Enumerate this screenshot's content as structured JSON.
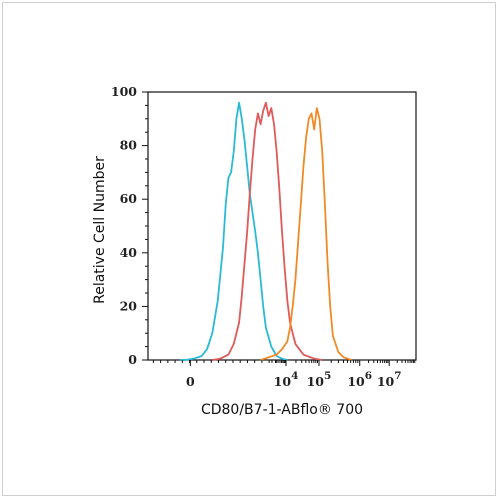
{
  "chart_data": {
    "type": "line",
    "ylabel": "Relative Cell Number",
    "xlabel": "CD80/B7-1-ABflo® 700",
    "ylim": [
      0,
      100
    ],
    "x_scale": "biexponential",
    "yticks": [
      {
        "value": 0,
        "label": "0"
      },
      {
        "value": 20,
        "label": "20"
      },
      {
        "value": 40,
        "label": "40"
      },
      {
        "value": 60,
        "label": "60"
      },
      {
        "value": 80,
        "label": "80"
      },
      {
        "value": 100,
        "label": "100"
      }
    ],
    "xticks": [
      {
        "pos": 0.158,
        "exp": "",
        "base": "0"
      },
      {
        "pos": 0.515,
        "exp": "4",
        "base": "10"
      },
      {
        "pos": 0.638,
        "exp": "5",
        "base": "10"
      },
      {
        "pos": 0.79,
        "exp": "6",
        "base": "10"
      },
      {
        "pos": 0.9,
        "exp": "7",
        "base": "10"
      }
    ],
    "grid": false,
    "series": [
      {
        "color": "#2bbad6",
        "points": [
          [
            0.12,
            0
          ],
          [
            0.14,
            0
          ],
          [
            0.17,
            0.5
          ],
          [
            0.2,
            1.5
          ],
          [
            0.22,
            4
          ],
          [
            0.24,
            10
          ],
          [
            0.26,
            22
          ],
          [
            0.28,
            42
          ],
          [
            0.29,
            58
          ],
          [
            0.3,
            68
          ],
          [
            0.31,
            70
          ],
          [
            0.32,
            78
          ],
          [
            0.33,
            90
          ],
          [
            0.34,
            96
          ],
          [
            0.35,
            90
          ],
          [
            0.36,
            82
          ],
          [
            0.37,
            72
          ],
          [
            0.38,
            62
          ],
          [
            0.39,
            55
          ],
          [
            0.4,
            48
          ],
          [
            0.41,
            40
          ],
          [
            0.42,
            30
          ],
          [
            0.43,
            20
          ],
          [
            0.44,
            12
          ],
          [
            0.46,
            5
          ],
          [
            0.48,
            1.5
          ],
          [
            0.5,
            0.5
          ],
          [
            0.52,
            0
          ]
        ]
      },
      {
        "color": "#e05a5a",
        "points": [
          [
            0.24,
            0
          ],
          [
            0.27,
            0.5
          ],
          [
            0.3,
            2
          ],
          [
            0.32,
            6
          ],
          [
            0.34,
            14
          ],
          [
            0.35,
            24
          ],
          [
            0.36,
            36
          ],
          [
            0.37,
            48
          ],
          [
            0.38,
            62
          ],
          [
            0.39,
            75
          ],
          [
            0.4,
            86
          ],
          [
            0.41,
            92
          ],
          [
            0.42,
            88
          ],
          [
            0.43,
            93
          ],
          [
            0.44,
            96
          ],
          [
            0.45,
            91
          ],
          [
            0.46,
            94
          ],
          [
            0.47,
            88
          ],
          [
            0.48,
            78
          ],
          [
            0.49,
            64
          ],
          [
            0.5,
            48
          ],
          [
            0.51,
            34
          ],
          [
            0.52,
            22
          ],
          [
            0.53,
            14
          ],
          [
            0.55,
            6
          ],
          [
            0.58,
            2
          ],
          [
            0.62,
            0.5
          ],
          [
            0.65,
            0
          ]
        ]
      },
      {
        "color": "#f08a24",
        "points": [
          [
            0.42,
            0
          ],
          [
            0.45,
            1
          ],
          [
            0.48,
            2
          ],
          [
            0.5,
            4
          ],
          [
            0.52,
            7
          ],
          [
            0.53,
            12
          ],
          [
            0.54,
            20
          ],
          [
            0.55,
            30
          ],
          [
            0.56,
            44
          ],
          [
            0.57,
            58
          ],
          [
            0.58,
            72
          ],
          [
            0.59,
            83
          ],
          [
            0.6,
            90
          ],
          [
            0.61,
            92
          ],
          [
            0.62,
            86
          ],
          [
            0.63,
            94
          ],
          [
            0.64,
            90
          ],
          [
            0.65,
            78
          ],
          [
            0.66,
            58
          ],
          [
            0.67,
            36
          ],
          [
            0.68,
            20
          ],
          [
            0.69,
            9
          ],
          [
            0.71,
            3
          ],
          [
            0.73,
            1
          ],
          [
            0.76,
            0
          ]
        ]
      }
    ]
  }
}
